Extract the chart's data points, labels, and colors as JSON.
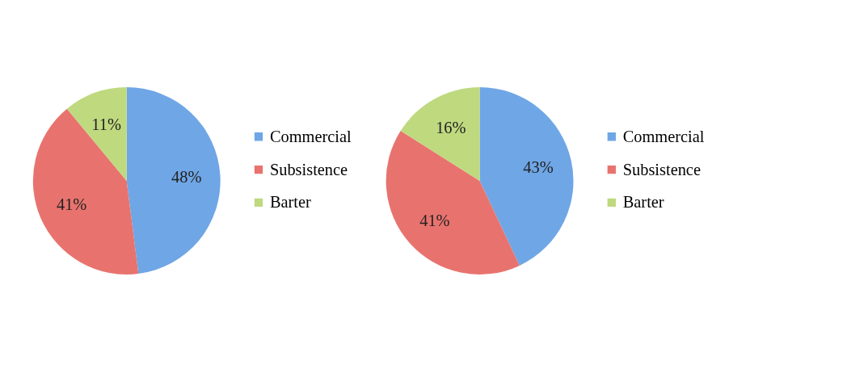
{
  "chart_data": [
    {
      "type": "pie",
      "categories": [
        "Commercial",
        "Subsistence",
        "Barter"
      ],
      "values": [
        48,
        41,
        11
      ],
      "value_labels": [
        "48%",
        "41%",
        "11%"
      ],
      "colors": [
        "#6fa6e6",
        "#e8736e",
        "#bfd97f"
      ],
      "legend": "right"
    },
    {
      "type": "pie",
      "categories": [
        "Commercial",
        "Subsistence",
        "Barter"
      ],
      "values": [
        43,
        41,
        16
      ],
      "value_labels": [
        "43%",
        "41%",
        "16%"
      ],
      "colors": [
        "#6fa6e6",
        "#e8736e",
        "#bfd97f"
      ],
      "legend": "right"
    }
  ]
}
